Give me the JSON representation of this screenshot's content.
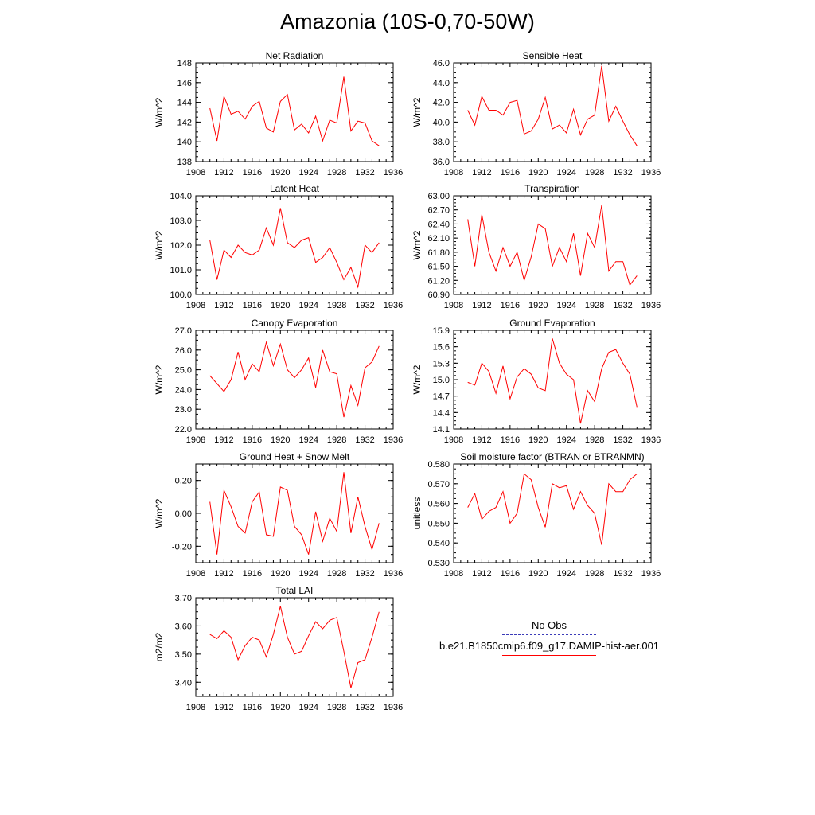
{
  "title": "Amazonia (10S-0,70-50W)",
  "colors": {
    "model": "#ff0000",
    "obs": "#3b3bb8",
    "axis": "#000000"
  },
  "legend": {
    "obs_label": "No Obs",
    "model_label": "b.e21.B1850cmip6.f09_g17.DAMIP-hist-aer.001"
  },
  "chart_data": [
    {
      "type": "line",
      "title": "Net Radiation",
      "ylabel": "W/m^2",
      "xlim": [
        1908,
        1936
      ],
      "xticks": [
        1908,
        1912,
        1916,
        1920,
        1924,
        1928,
        1932,
        1936
      ],
      "ylim": [
        138,
        148
      ],
      "yticks": [
        "138",
        "140",
        "142",
        "144",
        "146",
        "148"
      ],
      "x": [
        1910,
        1911,
        1912,
        1913,
        1914,
        1915,
        1916,
        1917,
        1918,
        1919,
        1920,
        1921,
        1922,
        1923,
        1924,
        1925,
        1926,
        1927,
        1928,
        1929,
        1930,
        1931,
        1932,
        1933,
        1934
      ],
      "series": [
        {
          "values": [
            143.4,
            140.1,
            144.6,
            142.8,
            143.1,
            142.3,
            143.6,
            144.1,
            141.4,
            141.0,
            144.1,
            144.8,
            141.2,
            141.8,
            140.9,
            142.6,
            140.1,
            142.2,
            141.9,
            146.6,
            141.1,
            142.1,
            141.9,
            140.1,
            139.6
          ]
        }
      ]
    },
    {
      "type": "line",
      "title": "Sensible Heat",
      "ylabel": "W/m^2",
      "xlim": [
        1908,
        1936
      ],
      "xticks": [
        1908,
        1912,
        1916,
        1920,
        1924,
        1928,
        1932,
        1936
      ],
      "ylim": [
        36,
        46
      ],
      "yticks": [
        "36.0",
        "38.0",
        "40.0",
        "42.0",
        "44.0",
        "46.0"
      ],
      "x": [
        1910,
        1911,
        1912,
        1913,
        1914,
        1915,
        1916,
        1917,
        1918,
        1919,
        1920,
        1921,
        1922,
        1923,
        1924,
        1925,
        1926,
        1927,
        1928,
        1929,
        1930,
        1931,
        1932,
        1933,
        1934
      ],
      "series": [
        {
          "values": [
            41.2,
            39.7,
            42.6,
            41.2,
            41.2,
            40.7,
            42.0,
            42.2,
            38.8,
            39.1,
            40.3,
            42.5,
            39.3,
            39.7,
            38.9,
            41.3,
            38.7,
            40.3,
            40.7,
            45.7,
            40.1,
            41.6,
            40.1,
            38.7,
            37.6
          ]
        }
      ]
    },
    {
      "type": "line",
      "title": "Latent Heat",
      "ylabel": "W/m^2",
      "xlim": [
        1908,
        1936
      ],
      "xticks": [
        1908,
        1912,
        1916,
        1920,
        1924,
        1928,
        1932,
        1936
      ],
      "ylim": [
        100,
        104
      ],
      "yticks": [
        "100.0",
        "101.0",
        "102.0",
        "103.0",
        "104.0"
      ],
      "x": [
        1910,
        1911,
        1912,
        1913,
        1914,
        1915,
        1916,
        1917,
        1918,
        1919,
        1920,
        1921,
        1922,
        1923,
        1924,
        1925,
        1926,
        1927,
        1928,
        1929,
        1930,
        1931,
        1932,
        1933,
        1934
      ],
      "series": [
        {
          "values": [
            102.2,
            100.6,
            101.8,
            101.5,
            102.0,
            101.7,
            101.6,
            101.8,
            102.7,
            102.0,
            103.5,
            102.1,
            101.9,
            102.2,
            102.3,
            101.3,
            101.5,
            101.9,
            101.3,
            100.6,
            101.1,
            100.3,
            102.0,
            101.7,
            102.1
          ]
        }
      ]
    },
    {
      "type": "line",
      "title": "Transpiration",
      "ylabel": "W/m^2",
      "xlim": [
        1908,
        1936
      ],
      "xticks": [
        1908,
        1912,
        1916,
        1920,
        1924,
        1928,
        1932,
        1936
      ],
      "ylim": [
        60.9,
        63.0
      ],
      "yticks": [
        "60.90",
        "61.20",
        "61.50",
        "61.80",
        "62.10",
        "62.40",
        "62.70",
        "63.00"
      ],
      "x": [
        1910,
        1911,
        1912,
        1913,
        1914,
        1915,
        1916,
        1917,
        1918,
        1919,
        1920,
        1921,
        1922,
        1923,
        1924,
        1925,
        1926,
        1927,
        1928,
        1929,
        1930,
        1931,
        1932,
        1933,
        1934
      ],
      "series": [
        {
          "values": [
            62.5,
            61.5,
            62.6,
            61.8,
            61.4,
            61.9,
            61.5,
            61.8,
            61.2,
            61.7,
            62.4,
            62.3,
            61.5,
            61.9,
            61.6,
            62.2,
            61.3,
            62.2,
            61.9,
            62.8,
            61.4,
            61.6,
            61.6,
            61.1,
            61.3
          ]
        }
      ]
    },
    {
      "type": "line",
      "title": "Canopy Evaporation",
      "ylabel": "W/m^2",
      "xlim": [
        1908,
        1936
      ],
      "xticks": [
        1908,
        1912,
        1916,
        1920,
        1924,
        1928,
        1932,
        1936
      ],
      "ylim": [
        22,
        27
      ],
      "yticks": [
        "22.0",
        "23.0",
        "24.0",
        "25.0",
        "26.0",
        "27.0"
      ],
      "x": [
        1910,
        1911,
        1912,
        1913,
        1914,
        1915,
        1916,
        1917,
        1918,
        1919,
        1920,
        1921,
        1922,
        1923,
        1924,
        1925,
        1926,
        1927,
        1928,
        1929,
        1930,
        1931,
        1932,
        1933,
        1934
      ],
      "series": [
        {
          "values": [
            24.7,
            24.3,
            23.9,
            24.5,
            25.9,
            24.5,
            25.3,
            24.9,
            26.4,
            25.2,
            26.3,
            25.0,
            24.6,
            25.0,
            25.6,
            24.1,
            26.0,
            24.9,
            24.8,
            22.6,
            24.2,
            23.2,
            25.1,
            25.4,
            26.2
          ]
        }
      ]
    },
    {
      "type": "line",
      "title": "Ground Evaporation",
      "ylabel": "W/m^2",
      "xlim": [
        1908,
        1936
      ],
      "xticks": [
        1908,
        1912,
        1916,
        1920,
        1924,
        1928,
        1932,
        1936
      ],
      "ylim": [
        14.1,
        15.9
      ],
      "yticks": [
        "14.1",
        "14.4",
        "14.7",
        "15.0",
        "15.3",
        "15.6",
        "15.9"
      ],
      "x": [
        1910,
        1911,
        1912,
        1913,
        1914,
        1915,
        1916,
        1917,
        1918,
        1919,
        1920,
        1921,
        1922,
        1923,
        1924,
        1925,
        1926,
        1927,
        1928,
        1929,
        1930,
        1931,
        1932,
        1933,
        1934
      ],
      "series": [
        {
          "values": [
            14.95,
            14.9,
            15.3,
            15.15,
            14.75,
            15.25,
            14.65,
            15.05,
            15.2,
            15.1,
            14.85,
            14.8,
            15.75,
            15.3,
            15.1,
            15.0,
            14.2,
            14.8,
            14.6,
            15.2,
            15.5,
            15.55,
            15.3,
            15.1,
            14.5
          ]
        }
      ]
    },
    {
      "type": "line",
      "title": "Ground Heat + Snow Melt",
      "ylabel": "W/m^2",
      "xlim": [
        1908,
        1936
      ],
      "xticks": [
        1908,
        1912,
        1916,
        1920,
        1924,
        1928,
        1932,
        1936
      ],
      "ylim": [
        -0.3,
        0.3
      ],
      "yticks": [
        "-0.20",
        "0.00",
        "0.20"
      ],
      "ytick_values": [
        -0.2,
        0.0,
        0.2
      ],
      "x": [
        1910,
        1911,
        1912,
        1913,
        1914,
        1915,
        1916,
        1917,
        1918,
        1919,
        1920,
        1921,
        1922,
        1923,
        1924,
        1925,
        1926,
        1927,
        1928,
        1929,
        1930,
        1931,
        1932,
        1933,
        1934
      ],
      "series": [
        {
          "values": [
            0.07,
            -0.25,
            0.14,
            0.04,
            -0.08,
            -0.12,
            0.07,
            0.13,
            -0.13,
            -0.14,
            0.16,
            0.14,
            -0.08,
            -0.13,
            -0.25,
            0.01,
            -0.17,
            -0.03,
            -0.11,
            0.25,
            -0.12,
            0.1,
            -0.08,
            -0.22,
            -0.06
          ]
        }
      ]
    },
    {
      "type": "line",
      "title": "Soil moisture factor (BTRAN or BTRANMN)",
      "ylabel": "unitless",
      "xlim": [
        1908,
        1936
      ],
      "xticks": [
        1908,
        1912,
        1916,
        1920,
        1924,
        1928,
        1932,
        1936
      ],
      "ylim": [
        0.53,
        0.58
      ],
      "yticks": [
        "0.530",
        "0.540",
        "0.550",
        "0.560",
        "0.570",
        "0.580"
      ],
      "x": [
        1910,
        1911,
        1912,
        1913,
        1914,
        1915,
        1916,
        1917,
        1918,
        1919,
        1920,
        1921,
        1922,
        1923,
        1924,
        1925,
        1926,
        1927,
        1928,
        1929,
        1930,
        1931,
        1932,
        1933,
        1934
      ],
      "series": [
        {
          "values": [
            0.558,
            0.565,
            0.552,
            0.556,
            0.558,
            0.566,
            0.55,
            0.555,
            0.575,
            0.572,
            0.558,
            0.548,
            0.57,
            0.568,
            0.569,
            0.557,
            0.566,
            0.559,
            0.555,
            0.539,
            0.57,
            0.566,
            0.566,
            0.572,
            0.575
          ]
        }
      ]
    },
    {
      "type": "line",
      "title": "Total LAI",
      "ylabel": "m2/m2",
      "xlim": [
        1908,
        1936
      ],
      "xticks": [
        1908,
        1912,
        1916,
        1920,
        1924,
        1928,
        1932,
        1936
      ],
      "ylim": [
        3.35,
        3.7
      ],
      "yticks": [
        "3.40",
        "3.50",
        "3.60",
        "3.70"
      ],
      "ytick_values": [
        3.4,
        3.5,
        3.6,
        3.7
      ],
      "x": [
        1910,
        1911,
        1912,
        1913,
        1914,
        1915,
        1916,
        1917,
        1918,
        1919,
        1920,
        1921,
        1922,
        1923,
        1924,
        1925,
        1926,
        1927,
        1928,
        1929,
        1930,
        1931,
        1932,
        1933,
        1934
      ],
      "series": [
        {
          "values": [
            3.57,
            3.555,
            3.583,
            3.56,
            3.48,
            3.53,
            3.56,
            3.55,
            3.49,
            3.57,
            3.67,
            3.56,
            3.5,
            3.51,
            3.565,
            3.615,
            3.59,
            3.62,
            3.63,
            3.51,
            3.38,
            3.47,
            3.48,
            3.56,
            3.65
          ]
        }
      ]
    }
  ]
}
